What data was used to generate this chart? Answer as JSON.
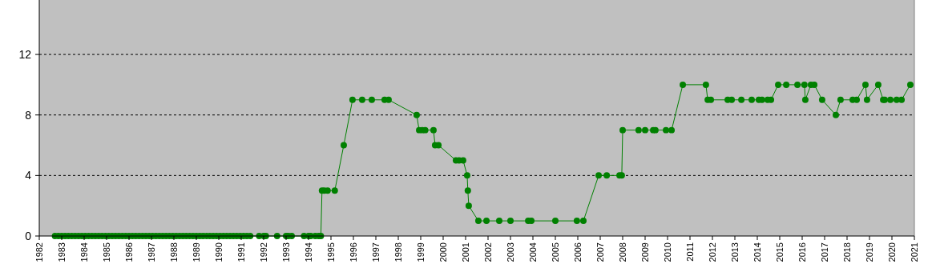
{
  "chart_data": {
    "type": "line",
    "xlim": [
      1982,
      2021
    ],
    "xticks": [
      1982,
      1983,
      1984,
      1985,
      1986,
      1987,
      1988,
      1989,
      1990,
      1991,
      1992,
      1993,
      1994,
      1995,
      1996,
      1997,
      1998,
      1999,
      2000,
      2001,
      2002,
      2003,
      2004,
      2005,
      2006,
      2007,
      2008,
      2009,
      2010,
      2011,
      2012,
      2013,
      2014,
      2015,
      2016,
      2017,
      2018,
      2019,
      2020,
      2021
    ],
    "ylim": [
      0,
      15.6
    ],
    "yticks": [
      0,
      4,
      8,
      12
    ],
    "grid": "y",
    "marker": "circle",
    "series": [
      {
        "color": "#008000",
        "x": [
          1982.7,
          1982.85,
          1983,
          1983.15,
          1983.3,
          1983.45,
          1983.6,
          1983.75,
          1983.9,
          1984.05,
          1984.2,
          1984.35,
          1984.5,
          1984.65,
          1984.8,
          1984.95,
          1985.1,
          1985.25,
          1985.4,
          1985.55,
          1985.7,
          1985.85,
          1986,
          1986.15,
          1986.3,
          1986.45,
          1986.6,
          1986.75,
          1986.9,
          1987.05,
          1987.2,
          1987.35,
          1987.5,
          1987.65,
          1987.8,
          1987.95,
          1988.1,
          1988.25,
          1988.4,
          1988.55,
          1988.7,
          1988.85,
          1989,
          1989.15,
          1989.3,
          1989.45,
          1989.6,
          1989.75,
          1989.9,
          1990.05,
          1990.2,
          1990.35,
          1990.5,
          1990.65,
          1990.8,
          1990.95,
          1991.1,
          1991.25,
          1991.4,
          1991.8,
          1992,
          1992.1,
          1992.6,
          1993,
          1993.1,
          1993.25,
          1993.8,
          1994,
          1994.1,
          1994.3,
          1994.45,
          1994.55,
          1994.6,
          1994.7,
          1994.85,
          1995.17,
          1995.57,
          1995.96,
          1996.39,
          1996.82,
          1997.39,
          1997.57,
          1998.82,
          1998.93,
          1999.07,
          1999.2,
          1999.57,
          1999.64,
          1999.79,
          2000.57,
          2000.71,
          2000.89,
          2001.07,
          2001.1,
          2001.14,
          2001.57,
          2001.93,
          2002.5,
          2003,
          2003.79,
          2003.93,
          2005,
          2005.96,
          2006.25,
          2006.93,
          2007.29,
          2007.86,
          2007.96,
          2008,
          2008.71,
          2009,
          2009.36,
          2009.46,
          2009.93,
          2010.18,
          2010.68,
          2011.71,
          2011.79,
          2011.93,
          2012.68,
          2012.86,
          2013.29,
          2013.75,
          2014.07,
          2014.21,
          2014.46,
          2014.61,
          2014.93,
          2015.29,
          2015.79,
          2016.1,
          2016.14,
          2016.39,
          2016.54,
          2016.89,
          2017.5,
          2017.71,
          2018.25,
          2018.43,
          2018.82,
          2018.89,
          2019.39,
          2019.61,
          2019.68,
          2019.93,
          2020.21,
          2020.43,
          2020.82
        ],
        "values": [
          0,
          0,
          0,
          0,
          0,
          0,
          0,
          0,
          0,
          0,
          0,
          0,
          0,
          0,
          0,
          0,
          0,
          0,
          0,
          0,
          0,
          0,
          0,
          0,
          0,
          0,
          0,
          0,
          0,
          0,
          0,
          0,
          0,
          0,
          0,
          0,
          0,
          0,
          0,
          0,
          0,
          0,
          0,
          0,
          0,
          0,
          0,
          0,
          0,
          0,
          0,
          0,
          0,
          0,
          0,
          0,
          0,
          0,
          0,
          0,
          0,
          0,
          0,
          0,
          0,
          0,
          0,
          0,
          0,
          0,
          0,
          0,
          3,
          3,
          3,
          3,
          6,
          9,
          9,
          9,
          9,
          9,
          8,
          7,
          7,
          7,
          7,
          6,
          6,
          5,
          5,
          5,
          4,
          3,
          2,
          1,
          1,
          1,
          1,
          1,
          1,
          1,
          1,
          1,
          4,
          4,
          4,
          4,
          7,
          7,
          7,
          7,
          7,
          7,
          7,
          10,
          10,
          9,
          9,
          9,
          9,
          9,
          9,
          9,
          9,
          9,
          9,
          10,
          10,
          10,
          10,
          9,
          10,
          10,
          9,
          8,
          9,
          9,
          9,
          10,
          9,
          10,
          9,
          9,
          9,
          9,
          9,
          10
        ]
      }
    ]
  }
}
